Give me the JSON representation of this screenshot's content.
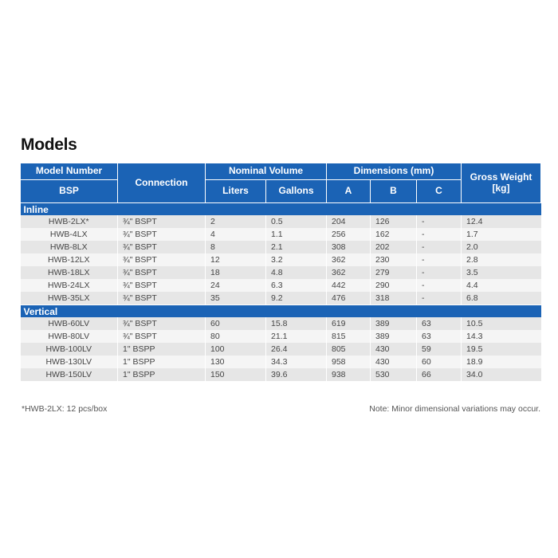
{
  "title": "Models",
  "header": {
    "model_number": "Model Number",
    "bsp": "BSP",
    "connection": "Connection",
    "nominal_volume": "Nominal Volume",
    "liters": "Liters",
    "gallons": "Gallons",
    "dimensions": "Dimensions (mm)",
    "a": "A",
    "b": "B",
    "c": "C",
    "gross_weight": "Gross Weight [kg]"
  },
  "groups": [
    {
      "label": "Inline",
      "rows": [
        {
          "model": "HWB-2LX*",
          "connection": "¾\" BSPT",
          "liters": "2",
          "gallons": "0.5",
          "a": "204",
          "b": "126",
          "c": "-",
          "weight": "12.4"
        },
        {
          "model": "HWB-4LX",
          "connection": "¾\" BSPT",
          "liters": "4",
          "gallons": "1.1",
          "a": "256",
          "b": "162",
          "c": "-",
          "weight": "1.7"
        },
        {
          "model": "HWB-8LX",
          "connection": "¾\" BSPT",
          "liters": "8",
          "gallons": "2.1",
          "a": "308",
          "b": "202",
          "c": "-",
          "weight": "2.0"
        },
        {
          "model": "HWB-12LX",
          "connection": "¾\" BSPT",
          "liters": "12",
          "gallons": "3.2",
          "a": "362",
          "b": "230",
          "c": "-",
          "weight": "2.8"
        },
        {
          "model": "HWB-18LX",
          "connection": "¾\" BSPT",
          "liters": "18",
          "gallons": "4.8",
          "a": "362",
          "b": "279",
          "c": "-",
          "weight": "3.5"
        },
        {
          "model": "HWB-24LX",
          "connection": "¾\" BSPT",
          "liters": "24",
          "gallons": "6.3",
          "a": "442",
          "b": "290",
          "c": "-",
          "weight": "4.4"
        },
        {
          "model": "HWB-35LX",
          "connection": "¾\" BSPT",
          "liters": "35",
          "gallons": "9.2",
          "a": "476",
          "b": "318",
          "c": "-",
          "weight": "6.8"
        }
      ]
    },
    {
      "label": "Vertical",
      "rows": [
        {
          "model": "HWB-60LV",
          "connection": "¾\" BSPT",
          "liters": "60",
          "gallons": "15.8",
          "a": "619",
          "b": "389",
          "c": "63",
          "weight": "10.5"
        },
        {
          "model": "HWB-80LV",
          "connection": "¾\" BSPT",
          "liters": "80",
          "gallons": "21.1",
          "a": "815",
          "b": "389",
          "c": "63",
          "weight": "14.3"
        },
        {
          "model": "HWB-100LV",
          "connection": "1\" BSPP",
          "liters": "100",
          "gallons": "26.4",
          "a": "805",
          "b": "430",
          "c": "59",
          "weight": "19.5"
        },
        {
          "model": "HWB-130LV",
          "connection": "1\" BSPP",
          "liters": "130",
          "gallons": "34.3",
          "a": "958",
          "b": "430",
          "c": "60",
          "weight": "18.9"
        },
        {
          "model": "HWB-150LV",
          "connection": "1\" BSPP",
          "liters": "150",
          "gallons": "39.6",
          "a": "938",
          "b": "530",
          "c": "66",
          "weight": "34.0"
        }
      ]
    }
  ],
  "footnote": "*HWB-2LX: 12 pcs/box",
  "note": "Note: Minor dimensional variations may occur."
}
